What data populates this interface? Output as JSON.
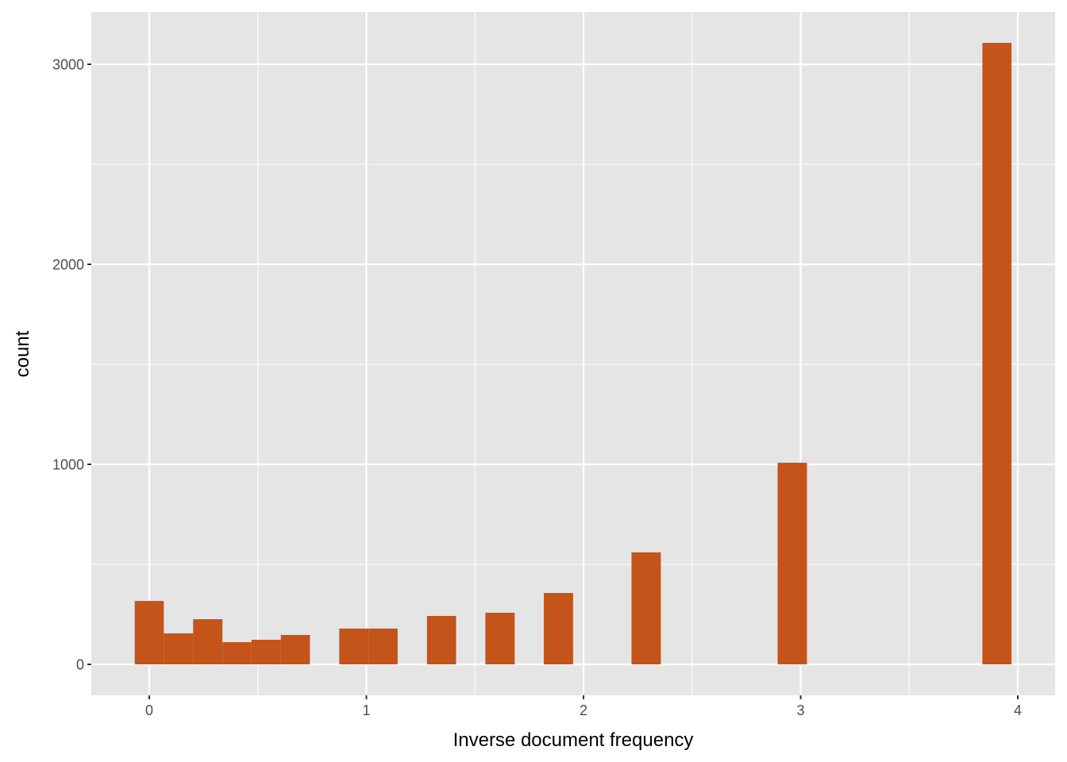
{
  "chart_data": {
    "type": "bar",
    "subtype": "histogram",
    "title": "",
    "xlabel": "Inverse document frequency",
    "ylabel": "count",
    "xlim": [
      -0.27,
      4.05
    ],
    "ylim": [
      -150,
      3250
    ],
    "x_ticks": [
      0,
      1,
      2,
      3,
      4
    ],
    "x_tick_labels": [
      "0",
      "1",
      "2",
      "3",
      "4"
    ],
    "y_ticks": [
      0,
      1000,
      2000,
      3000
    ],
    "y_tick_labels": [
      "0",
      "1000",
      "2000",
      "3000"
    ],
    "grid": true,
    "legend": null,
    "bin_width": 0.1346,
    "bar_color": "#C4541A",
    "bins": [
      {
        "x_start": -0.067,
        "x_end": 0.067,
        "count": 317
      },
      {
        "x_start": 0.067,
        "x_end": 0.202,
        "count": 155
      },
      {
        "x_start": 0.202,
        "x_end": 0.337,
        "count": 226
      },
      {
        "x_start": 0.337,
        "x_end": 0.471,
        "count": 111
      },
      {
        "x_start": 0.471,
        "x_end": 0.606,
        "count": 123
      },
      {
        "x_start": 0.606,
        "x_end": 0.74,
        "count": 147
      },
      {
        "x_start": 0.875,
        "x_end": 1.01,
        "count": 179
      },
      {
        "x_start": 1.01,
        "x_end": 1.144,
        "count": 179
      },
      {
        "x_start": 1.279,
        "x_end": 1.413,
        "count": 242
      },
      {
        "x_start": 1.548,
        "x_end": 1.683,
        "count": 258
      },
      {
        "x_start": 1.817,
        "x_end": 1.952,
        "count": 357
      },
      {
        "x_start": 2.221,
        "x_end": 2.356,
        "count": 560
      },
      {
        "x_start": 2.894,
        "x_end": 3.029,
        "count": 1008
      },
      {
        "x_start": 3.837,
        "x_end": 3.971,
        "count": 3107
      }
    ]
  },
  "colors": {
    "panel_background": "#E5E5E5",
    "grid_major": "#FFFFFF",
    "bar_fill": "#C4541A",
    "tick_text": "#4D4D4D"
  }
}
